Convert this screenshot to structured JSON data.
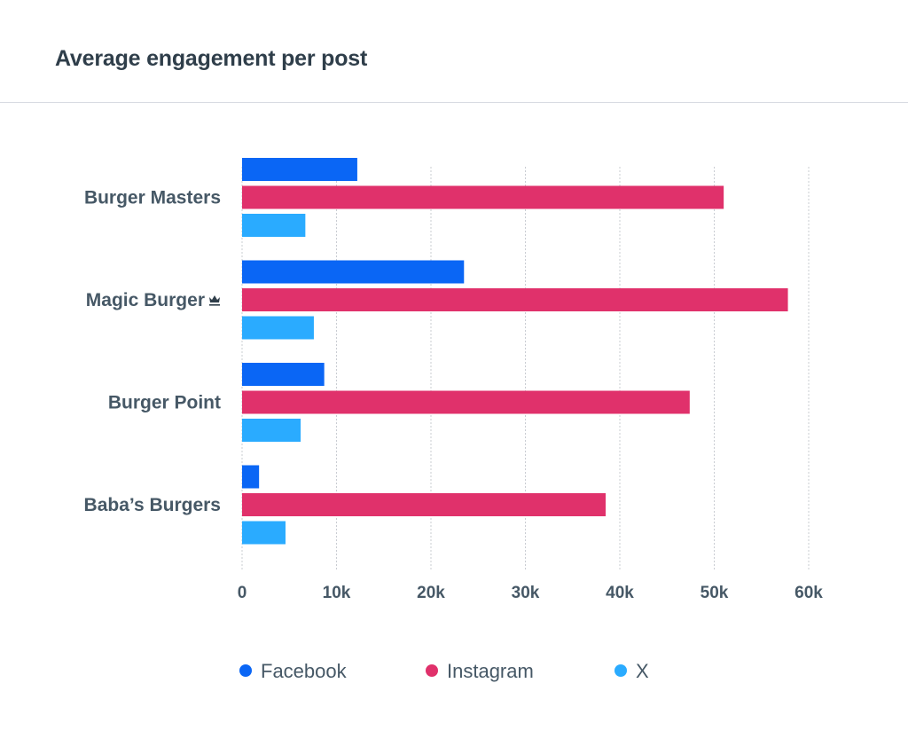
{
  "header": {
    "title": "Average engagement per post"
  },
  "colors": {
    "Facebook": "#0a66f5",
    "Instagram": "#e0316b",
    "X": "#2aabff"
  },
  "chart_data": {
    "type": "bar",
    "orientation": "horizontal",
    "title": "Average engagement per post",
    "xlabel": "",
    "ylabel": "",
    "categories": [
      "Burger Masters",
      "Magic Burger",
      "Burger Point",
      "Baba’s Burgers"
    ],
    "category_icons": [
      "",
      "crown-icon",
      "",
      ""
    ],
    "series": [
      {
        "name": "Facebook",
        "values": [
          12200,
          23500,
          8700,
          1800
        ]
      },
      {
        "name": "Instagram",
        "values": [
          51000,
          57800,
          47400,
          38500
        ]
      },
      {
        "name": "X",
        "values": [
          6700,
          7600,
          6200,
          4600
        ]
      }
    ],
    "xlim": [
      0,
      60000
    ],
    "x_ticks": [
      0,
      10000,
      20000,
      30000,
      40000,
      50000,
      60000
    ],
    "x_tick_labels": [
      "0",
      "10k",
      "20k",
      "30k",
      "40k",
      "50k",
      "60k"
    ],
    "grid": true,
    "legend": {
      "position": "bottom",
      "entries": [
        "Facebook",
        "Instagram",
        "X"
      ]
    }
  }
}
